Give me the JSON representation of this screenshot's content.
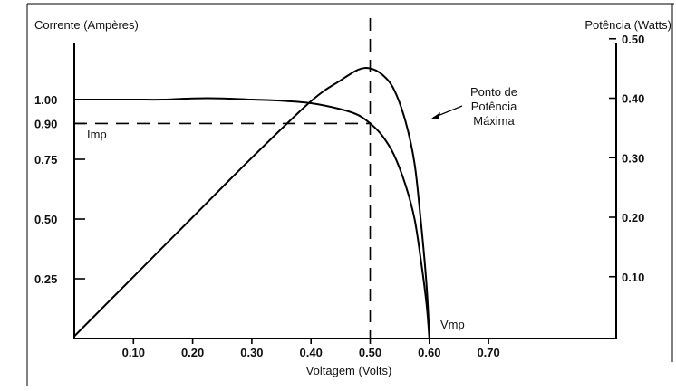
{
  "chart_data": {
    "type": "line",
    "ylabel_left": "Corrente (Ampères)",
    "ylabel_right": "Potência (Watts)",
    "xlabel": "Voltagem (Volts)",
    "xlim": [
      0,
      0.75
    ],
    "ylim_left": [
      0,
      1.2
    ],
    "ylim_right": [
      0,
      0.54
    ],
    "x_ticks": [
      "0.10",
      "0.20",
      "0.30",
      "0.40",
      "0.50",
      "0.60",
      "0.70"
    ],
    "x_tick_values": [
      0.1,
      0.2,
      0.3,
      0.4,
      0.5,
      0.6,
      0.7
    ],
    "y_left_ticks": [
      "1.00",
      "0.90",
      "0.75",
      "0.50",
      "0.25"
    ],
    "y_left_tick_values": [
      1.0,
      0.9,
      0.75,
      0.5,
      0.25
    ],
    "y_right_ticks": [
      "0.50",
      "0.40",
      "0.30",
      "0.20",
      "0.10"
    ],
    "y_right_tick_values": [
      0.5,
      0.4,
      0.3,
      0.2,
      0.1
    ],
    "series": [
      {
        "name": "Corrente",
        "axis": "left",
        "x": [
          0.0,
          0.05,
          0.1,
          0.15,
          0.2,
          0.25,
          0.3,
          0.35,
          0.4,
          0.45,
          0.48,
          0.5,
          0.52,
          0.54,
          0.56,
          0.575,
          0.585,
          0.595,
          0.6
        ],
        "values": [
          1.0,
          1.0,
          1.0,
          1.0,
          1.005,
          1.005,
          1.0,
          0.995,
          0.985,
          0.96,
          0.935,
          0.9,
          0.85,
          0.77,
          0.64,
          0.5,
          0.34,
          0.15,
          0.0
        ]
      },
      {
        "name": "Potência",
        "axis": "right",
        "x": [
          0.0,
          0.1,
          0.2,
          0.3,
          0.4,
          0.45,
          0.48,
          0.5,
          0.52,
          0.54,
          0.56,
          0.575,
          0.585,
          0.595,
          0.6
        ],
        "values": [
          0.0,
          0.1,
          0.2,
          0.3,
          0.395,
          0.43,
          0.448,
          0.45,
          0.44,
          0.415,
          0.36,
          0.29,
          0.2,
          0.09,
          0.0
        ]
      }
    ],
    "annotations": {
      "imp_label": "Imp",
      "vmp_label": "Vmp",
      "mpp_line1": "Ponto de",
      "mpp_line2": "Potência",
      "mpp_line3": "Máxima",
      "mpp_x": 0.5,
      "mpp_current": 0.9
    }
  }
}
